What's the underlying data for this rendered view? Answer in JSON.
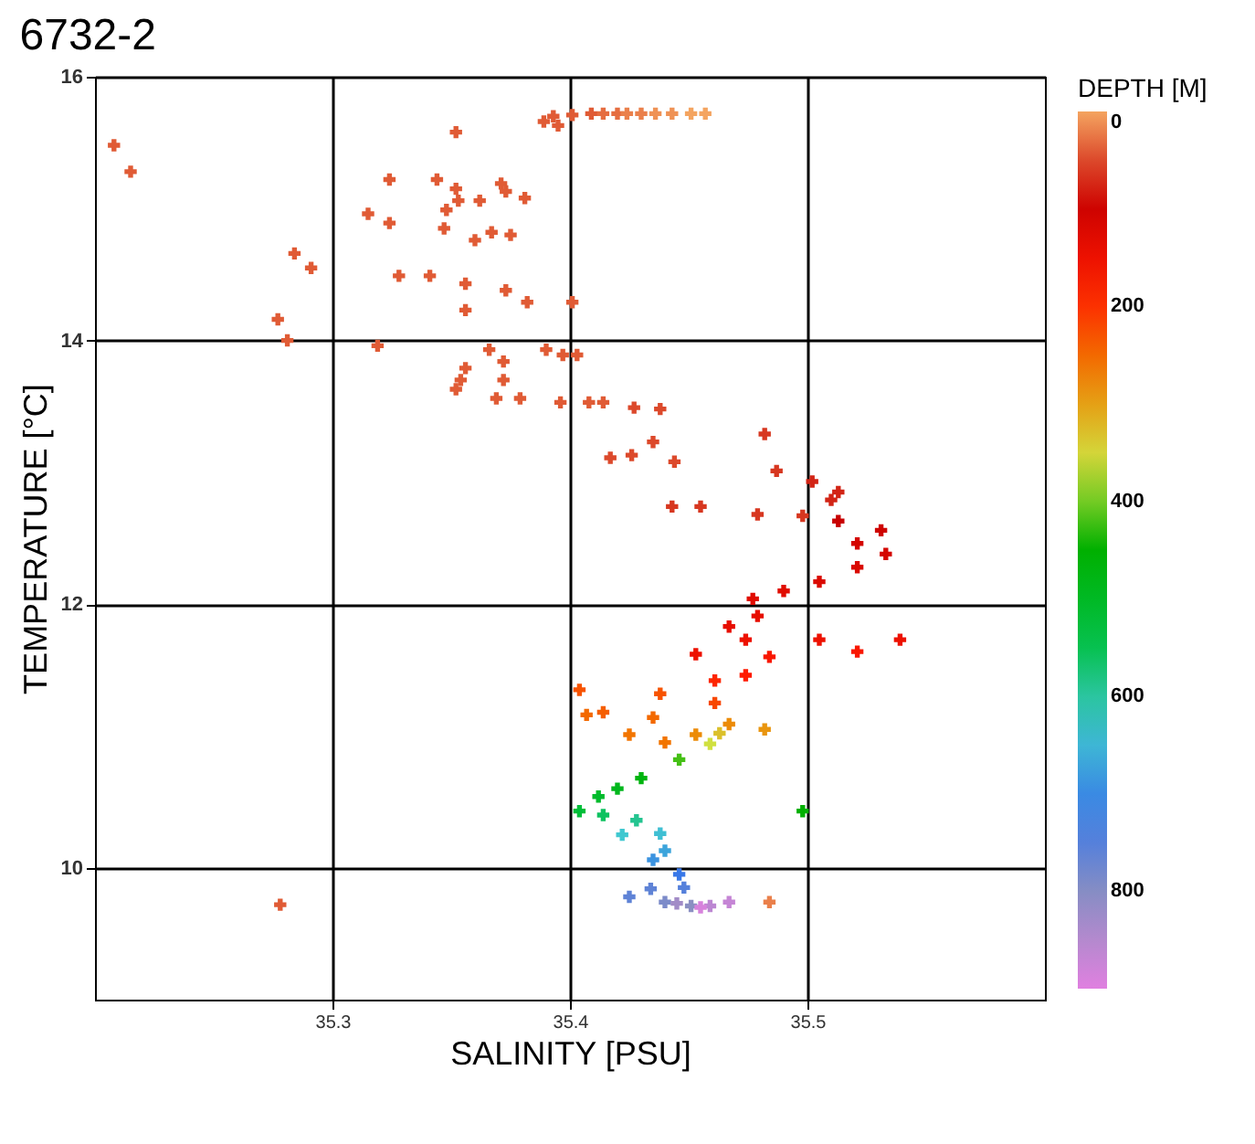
{
  "chart_data": {
    "type": "scatter",
    "title": "6732-2",
    "xlabel": "SALINITY [PSU]",
    "ylabel": "TEMPERATURE [°C]",
    "clabel": "DEPTH [M]",
    "xlim": [
      35.2,
      35.6
    ],
    "xticks": [
      35.3,
      35.4,
      35.5
    ],
    "ylim": [
      9,
      16
    ],
    "yticks": [
      10,
      12,
      14,
      16
    ],
    "clim": [
      0,
      900
    ],
    "cticks": [
      0,
      200,
      400,
      600,
      800
    ],
    "grid": true,
    "marker": "cross",
    "x": [
      35.208,
      35.215,
      35.284,
      35.291,
      35.277,
      35.281,
      35.352,
      35.324,
      35.344,
      35.352,
      35.371,
      35.373,
      35.381,
      35.353,
      35.362,
      35.348,
      35.315,
      35.324,
      35.347,
      35.367,
      35.375,
      35.36,
      35.328,
      35.341,
      35.356,
      35.373,
      35.382,
      35.356,
      35.401,
      35.319,
      35.366,
      35.372,
      35.356,
      35.354,
      35.352,
      35.372,
      35.369,
      35.379,
      35.39,
      35.397,
      35.403,
      35.396,
      35.408,
      35.414,
      35.427,
      35.389,
      35.393,
      35.395,
      35.401,
      35.409,
      35.414,
      35.42,
      35.424,
      35.43,
      35.436,
      35.443,
      35.451,
      35.457,
      35.438,
      35.482,
      35.435,
      35.417,
      35.426,
      35.444,
      35.487,
      35.502,
      35.513,
      35.443,
      35.455,
      35.479,
      35.498,
      35.51,
      35.513,
      35.531,
      35.521,
      35.533,
      35.521,
      35.505,
      35.49,
      35.477,
      35.479,
      35.467,
      35.453,
      35.474,
      35.505,
      35.539,
      35.521,
      35.484,
      35.474,
      35.461,
      35.404,
      35.438,
      35.461,
      35.414,
      35.435,
      35.407,
      35.425,
      35.44,
      35.467,
      35.482,
      35.453,
      35.463,
      35.459,
      35.446,
      35.43,
      35.42,
      35.412,
      35.404,
      35.414,
      35.428,
      35.422,
      35.438,
      35.44,
      35.435,
      35.446,
      35.448,
      35.425,
      35.434,
      35.44,
      35.451,
      35.445,
      35.459,
      35.467,
      35.455,
      35.498,
      35.484,
      35.278
    ],
    "values": [
      15.48,
      15.28,
      14.66,
      14.55,
      14.16,
      14.0,
      15.58,
      15.22,
      15.22,
      15.15,
      15.19,
      15.13,
      15.08,
      15.06,
      15.06,
      14.99,
      14.96,
      14.89,
      14.85,
      14.82,
      14.8,
      14.76,
      14.49,
      14.49,
      14.43,
      14.38,
      14.29,
      14.23,
      14.29,
      13.96,
      13.93,
      13.84,
      13.79,
      13.7,
      13.63,
      13.7,
      13.56,
      13.56,
      13.93,
      13.89,
      13.89,
      13.53,
      13.53,
      13.53,
      13.49,
      15.66,
      15.7,
      15.63,
      15.71,
      15.72,
      15.72,
      15.72,
      15.72,
      15.72,
      15.72,
      15.72,
      15.72,
      15.72,
      13.48,
      13.29,
      13.23,
      13.11,
      13.13,
      13.08,
      13.01,
      12.93,
      12.85,
      12.74,
      12.74,
      12.68,
      12.67,
      12.79,
      12.63,
      12.56,
      12.46,
      12.38,
      12.28,
      12.17,
      12.1,
      12.04,
      11.91,
      11.83,
      11.62,
      11.73,
      11.73,
      11.73,
      11.64,
      11.6,
      11.46,
      11.42,
      11.35,
      11.32,
      11.25,
      11.18,
      11.14,
      11.16,
      11.01,
      10.95,
      11.09,
      11.05,
      11.01,
      11.02,
      10.94,
      10.82,
      10.68,
      10.6,
      10.54,
      10.43,
      10.4,
      10.36,
      10.25,
      10.26,
      10.13,
      10.06,
      9.95,
      9.85,
      9.78,
      9.84,
      9.74,
      9.71,
      9.73,
      9.71,
      9.74,
      9.7,
      10.43,
      9.74,
      9.72
    ],
    "cvalues": [
      40,
      40,
      40,
      40,
      40,
      40,
      40,
      40,
      40,
      40,
      40,
      40,
      40,
      40,
      40,
      40,
      40,
      40,
      40,
      40,
      40,
      40,
      40,
      40,
      40,
      40,
      40,
      40,
      40,
      40,
      40,
      40,
      40,
      40,
      40,
      40,
      40,
      40,
      40,
      40,
      40,
      40,
      40,
      40,
      50,
      40,
      40,
      40,
      40,
      40,
      30,
      30,
      20,
      20,
      10,
      10,
      0,
      0,
      50,
      60,
      50,
      50,
      50,
      50,
      60,
      70,
      70,
      60,
      60,
      60,
      60,
      70,
      90,
      100,
      110,
      110,
      120,
      120,
      130,
      130,
      140,
      140,
      150,
      150,
      150,
      150,
      170,
      170,
      180,
      190,
      230,
      230,
      220,
      240,
      250,
      250,
      260,
      260,
      280,
      290,
      280,
      330,
      360,
      420,
      470,
      490,
      510,
      530,
      560,
      590,
      630,
      640,
      670,
      690,
      720,
      750,
      760,
      760,
      790,
      805,
      830,
      860,
      870,
      890,
      450,
      20,
      40
    ]
  }
}
